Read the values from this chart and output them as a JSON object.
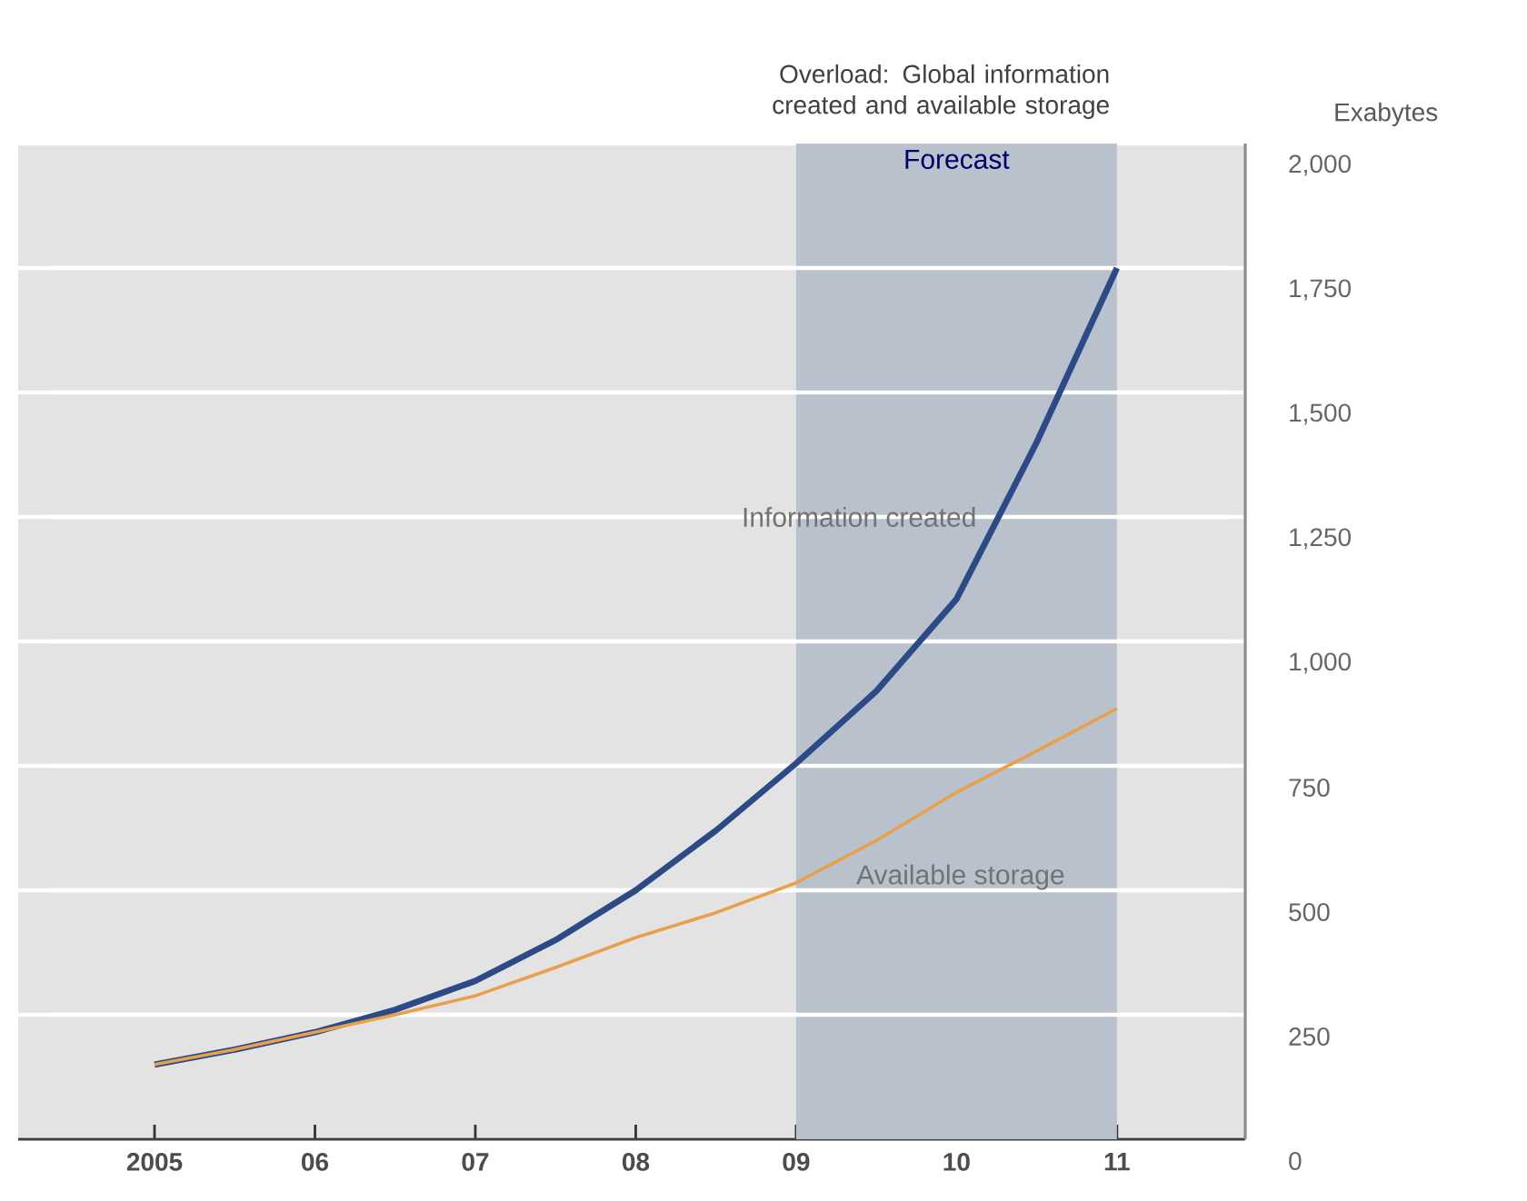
{
  "chart_data": {
    "type": "line",
    "title": "Overload: Global information created and available storage",
    "ylabel": "Exabytes",
    "x": [
      2005,
      2005.5,
      2006,
      2006.5,
      2007,
      2007.5,
      2008,
      2008.5,
      2009,
      2009.5,
      2010,
      2010.5,
      2011
    ],
    "series": [
      {
        "name": "Information created",
        "color": "#2b4a86",
        "values": [
          150,
          180,
          215,
          260,
          318,
          400,
          500,
          620,
          755,
          900,
          1085,
          1400,
          1750
        ]
      },
      {
        "name": "Available storage",
        "color": "#e8a04c",
        "values": [
          150,
          180,
          215,
          250,
          288,
          345,
          405,
          455,
          515,
          600,
          697,
          780,
          865
        ]
      }
    ],
    "xlim": [
      2004.15,
      2011.8
    ],
    "xticks": [
      {
        "value": 2005,
        "label": "2005"
      },
      {
        "value": 2006,
        "label": "06"
      },
      {
        "value": 2007,
        "label": "07"
      },
      {
        "value": 2008,
        "label": "08"
      },
      {
        "value": 2009,
        "label": "09"
      },
      {
        "value": 2010,
        "label": "10"
      },
      {
        "value": 2011,
        "label": "11"
      }
    ],
    "ylim": [
      0,
      2000
    ],
    "yticks": [
      0,
      250,
      500,
      750,
      {
        "value": 1000,
        "label": "1,000"
      },
      {
        "value": 1250,
        "label": "1,250"
      },
      {
        "value": 1500,
        "label": "1,500"
      },
      {
        "value": 1750,
        "label": "1,750"
      },
      {
        "value": 2000,
        "label": "2,000"
      }
    ],
    "bands": [
      {
        "axis": "x",
        "from": 2009,
        "to": 2011,
        "label": "Forecast",
        "color": "#b9c1cd"
      }
    ],
    "grid": "y",
    "legend": false,
    "marker": "none",
    "line_style": "solid"
  }
}
